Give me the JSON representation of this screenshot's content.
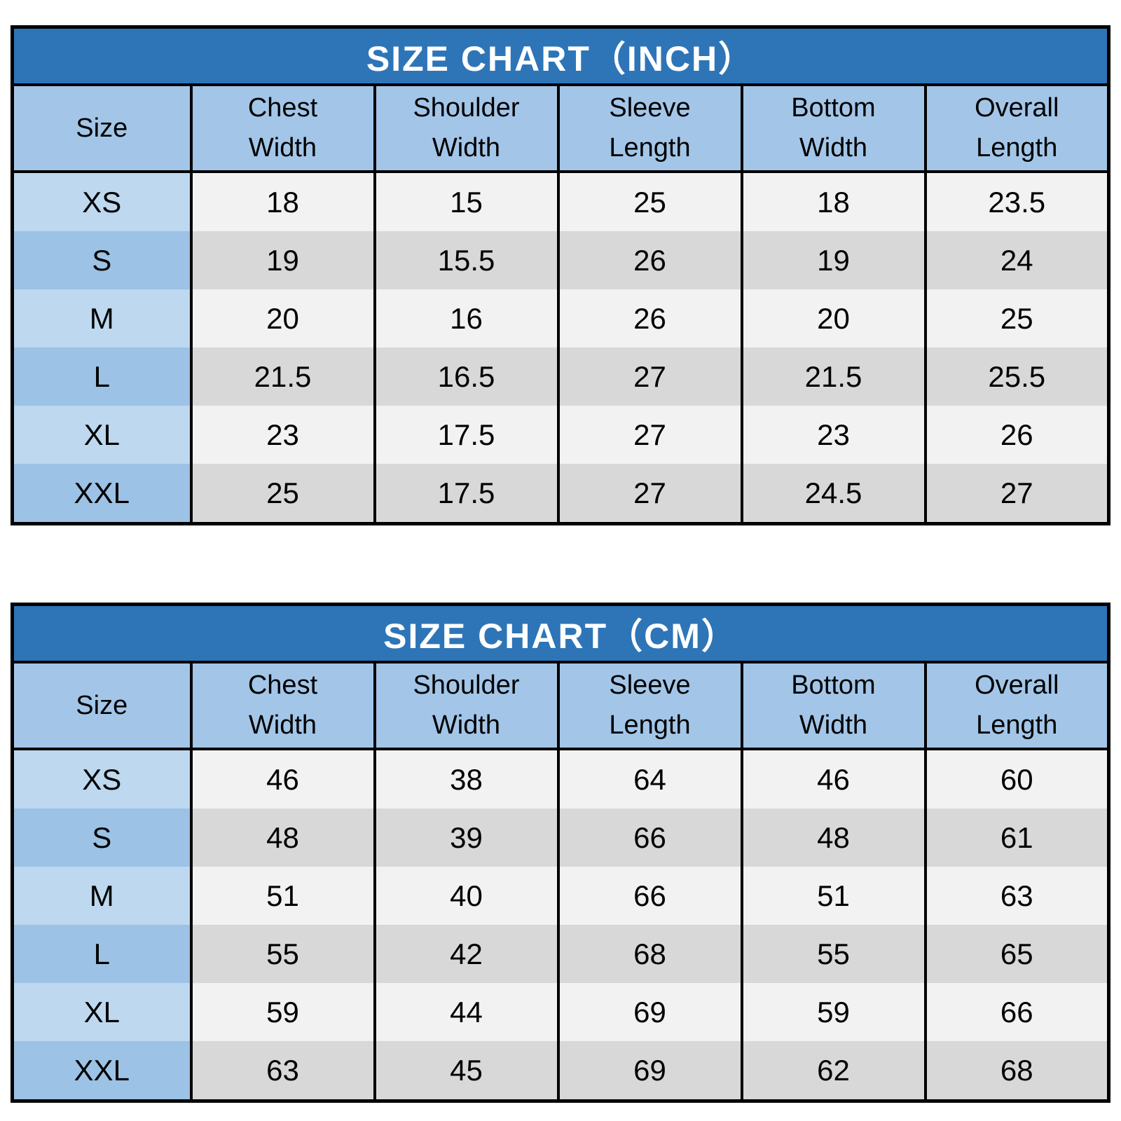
{
  "colors": {
    "title_bg": "#2E75B8",
    "title_text": "#FFFFFF",
    "header_bg": "#A3C6E8",
    "size_cell_light": "#BDD8EF",
    "size_cell_dark": "#9CC2E5",
    "data_row_light": "#F2F2F2",
    "data_row_dark": "#D8D8D8",
    "border": "#000000",
    "text": "#000000"
  },
  "tables": [
    {
      "id": "inch",
      "title": "SIZE CHART（INCH）",
      "header": {
        "size": "Size",
        "columns": [
          [
            "Chest",
            "Width"
          ],
          [
            "Shoulder",
            "Width"
          ],
          [
            "Sleeve",
            "Length"
          ],
          [
            "Bottom",
            "Width"
          ],
          [
            "Overall",
            "Length"
          ]
        ]
      },
      "rows": [
        {
          "size": "XS",
          "values": [
            "18",
            "15",
            "25",
            "18",
            "23.5"
          ]
        },
        {
          "size": "S",
          "values": [
            "19",
            "15.5",
            "26",
            "19",
            "24"
          ]
        },
        {
          "size": "M",
          "values": [
            "20",
            "16",
            "26",
            "20",
            "25"
          ]
        },
        {
          "size": "L",
          "values": [
            "21.5",
            "16.5",
            "27",
            "21.5",
            "25.5"
          ]
        },
        {
          "size": "XL",
          "values": [
            "23",
            "17.5",
            "27",
            "23",
            "26"
          ]
        },
        {
          "size": "XXL",
          "values": [
            "25",
            "17.5",
            "27",
            "24.5",
            "27"
          ]
        }
      ]
    },
    {
      "id": "cm",
      "title": "SIZE CHART（CM）",
      "header": {
        "size": "Size",
        "columns": [
          [
            "Chest",
            "Width"
          ],
          [
            "Shoulder",
            "Width"
          ],
          [
            "Sleeve",
            "Length"
          ],
          [
            "Bottom",
            "Width"
          ],
          [
            "Overall",
            "Length"
          ]
        ]
      },
      "rows": [
        {
          "size": "XS",
          "values": [
            "46",
            "38",
            "64",
            "46",
            "60"
          ]
        },
        {
          "size": "S",
          "values": [
            "48",
            "39",
            "66",
            "48",
            "61"
          ]
        },
        {
          "size": "M",
          "values": [
            "51",
            "40",
            "66",
            "51",
            "63"
          ]
        },
        {
          "size": "L",
          "values": [
            "55",
            "42",
            "68",
            "55",
            "65"
          ]
        },
        {
          "size": "XL",
          "values": [
            "59",
            "44",
            "69",
            "59",
            "66"
          ]
        },
        {
          "size": "XXL",
          "values": [
            "63",
            "45",
            "69",
            "62",
            "68"
          ]
        }
      ]
    }
  ],
  "chart_data": [
    {
      "type": "table",
      "title": "SIZE CHART（INCH）",
      "columns": [
        "Size",
        "Chest Width",
        "Shoulder Width",
        "Sleeve Length",
        "Bottom Width",
        "Overall Length"
      ],
      "rows": [
        [
          "XS",
          18,
          15,
          25,
          18,
          23.5
        ],
        [
          "S",
          19,
          15.5,
          26,
          19,
          24
        ],
        [
          "M",
          20,
          16,
          26,
          20,
          25
        ],
        [
          "L",
          21.5,
          16.5,
          27,
          21.5,
          25.5
        ],
        [
          "XL",
          23,
          17.5,
          27,
          23,
          26
        ],
        [
          "XXL",
          25,
          17.5,
          27,
          24.5,
          27
        ]
      ]
    },
    {
      "type": "table",
      "title": "SIZE CHART（CM）",
      "columns": [
        "Size",
        "Chest Width",
        "Shoulder Width",
        "Sleeve Length",
        "Bottom Width",
        "Overall Length"
      ],
      "rows": [
        [
          "XS",
          46,
          38,
          64,
          46,
          60
        ],
        [
          "S",
          48,
          39,
          66,
          48,
          61
        ],
        [
          "M",
          51,
          40,
          66,
          51,
          63
        ],
        [
          "L",
          55,
          42,
          68,
          55,
          65
        ],
        [
          "XL",
          59,
          44,
          69,
          59,
          66
        ],
        [
          "XXL",
          63,
          45,
          69,
          62,
          68
        ]
      ]
    }
  ]
}
